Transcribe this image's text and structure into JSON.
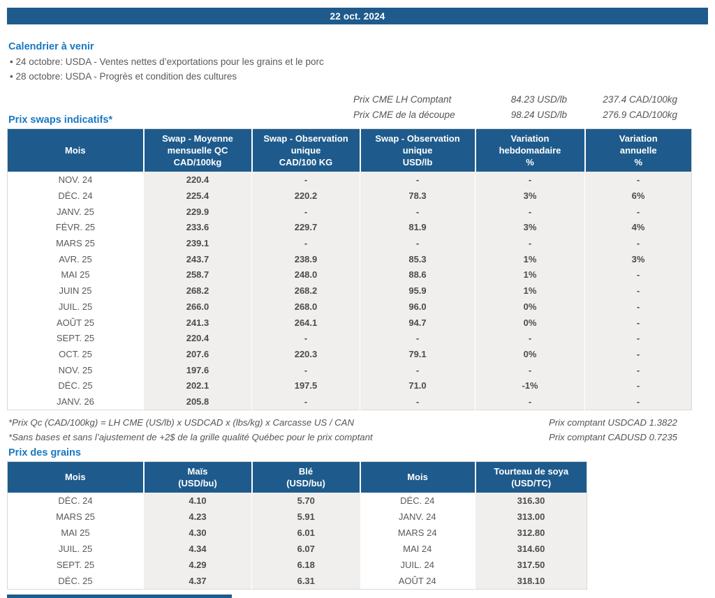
{
  "header": {
    "date": "22 oct. 2024"
  },
  "calendar": {
    "title": "Calendrier à venir",
    "items": [
      "24 octobre: USDA - Ventes nettes d’exportations pour les grains et le porc",
      "28 octobre: USDA - Progrès et condition des cultures"
    ]
  },
  "cme": {
    "rows": [
      {
        "label": "Prix CME LH Comptant",
        "usd": "84.23 USD/lb",
        "cad": "237.4 CAD/100kg"
      },
      {
        "label": "Prix CME de la découpe",
        "usd": "98.24 USD/lb",
        "cad": "276.9 CAD/100kg"
      }
    ]
  },
  "swaps": {
    "title": "Prix swaps indicatifs*",
    "headers": [
      "Mois",
      "Swap - Moyenne\nmensuelle QC\nCAD/100kg",
      "Swap - Observation\nunique\nCAD/100 KG",
      "Swap - Observation\nunique\nUSD/lb",
      "Variation\nhebdomadaire\n%",
      "Variation\nannuelle\n%"
    ],
    "rows": [
      [
        "NOV. 24",
        "220.4",
        "-",
        "-",
        "-",
        "-"
      ],
      [
        "DÉC. 24",
        "225.4",
        "220.2",
        "78.3",
        "3%",
        "6%"
      ],
      [
        "JANV. 25",
        "229.9",
        "-",
        "-",
        "-",
        "-"
      ],
      [
        "FÉVR. 25",
        "233.6",
        "229.7",
        "81.9",
        "3%",
        "4%"
      ],
      [
        "MARS 25",
        "239.1",
        "-",
        "-",
        "-",
        "-"
      ],
      [
        "AVR. 25",
        "243.7",
        "238.9",
        "85.3",
        "1%",
        "3%"
      ],
      [
        "MAI 25",
        "258.7",
        "248.0",
        "88.6",
        "1%",
        "-"
      ],
      [
        "JUIN 25",
        "268.2",
        "268.2",
        "95.9",
        "1%",
        "-"
      ],
      [
        "JUIL. 25",
        "266.0",
        "268.0",
        "96.0",
        "0%",
        "-"
      ],
      [
        "AOÛT 25",
        "241.3",
        "264.1",
        "94.7",
        "0%",
        "-"
      ],
      [
        "SEPT. 25",
        "220.4",
        "-",
        "-",
        "-",
        "-"
      ],
      [
        "OCT. 25",
        "207.6",
        "220.3",
        "79.1",
        "0%",
        "-"
      ],
      [
        "NOV. 25",
        "197.6",
        "-",
        "-",
        "-",
        "-"
      ],
      [
        "DÉC. 25",
        "202.1",
        "197.5",
        "71.0",
        "-1%",
        "-"
      ],
      [
        "JANV. 26",
        "205.8",
        "-",
        "-",
        "-",
        "-"
      ]
    ]
  },
  "notes": {
    "left": [
      "*Prix Qc (CAD/100kg) = LH CME (US/lb) x USDCAD x (lbs/kg) x Carcasse US / CAN",
      "*Sans bases et sans l’ajustement de +2$ de la grille qualité Québec pour le prix comptant"
    ],
    "right": [
      "Prix comptant USDCAD 1.3822",
      "Prix comptant CADUSD 0.7235"
    ]
  },
  "grains": {
    "title": "Prix des grains",
    "headers": [
      "Mois",
      "Maïs\n(USD/bu)",
      "Blé\n(USD/bu)",
      "Mois",
      "Tourteau de soya\n(USD/TC)"
    ],
    "rows": [
      [
        "DÉC. 24",
        "4.10",
        "5.70",
        "DÉC. 24",
        "316.30"
      ],
      [
        "MARS 25",
        "4.23",
        "5.91",
        "JANV. 24",
        "313.00"
      ],
      [
        "MAI 25",
        "4.30",
        "6.01",
        "MARS 24",
        "312.80"
      ],
      [
        "JUIL. 25",
        "4.34",
        "6.07",
        "MAI 24",
        "314.60"
      ],
      [
        "SEPT. 25",
        "4.29",
        "6.18",
        "JUIL. 24",
        "317.50"
      ],
      [
        "DÉC. 25",
        "4.37",
        "6.31",
        "AOÛT 24",
        "318.10"
      ]
    ]
  },
  "colors": {
    "header_bar_blue": "#1E5B8C",
    "section_title_blue": "#1878C2",
    "cell_shade_gray": "#F0EFED"
  }
}
